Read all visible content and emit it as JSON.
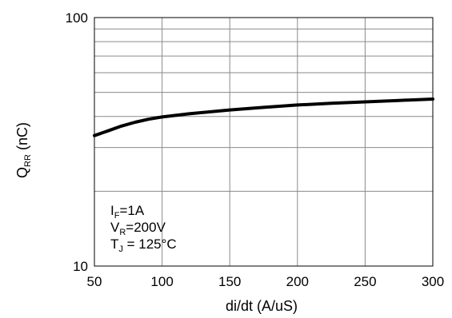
{
  "chart_data": {
    "type": "line",
    "x_scale": "linear",
    "y_scale": "log",
    "xlim": [
      50,
      300
    ],
    "ylim": [
      10,
      100
    ],
    "x_ticks": [
      50,
      100,
      150,
      200,
      250,
      300
    ],
    "y_tick_labels": [
      "100",
      "10"
    ],
    "xlabel": "di/dt (A/uS)",
    "ylabel": {
      "main": "Q",
      "sub": "RR",
      "suffix": " (nC)"
    },
    "grid": true,
    "series": [
      {
        "x": [
          50,
          60,
          70,
          80,
          90,
          100,
          120,
          150,
          175,
          200,
          225,
          250,
          275,
          300
        ],
        "y": [
          33.5,
          35.0,
          36.6,
          37.9,
          39.0,
          39.8,
          41.0,
          42.5,
          43.5,
          44.5,
          45.2,
          45.8,
          46.4,
          47.0
        ],
        "color": "#000000"
      }
    ],
    "annotations": [
      {
        "main": "I",
        "sub": "F",
        "rest": "=1A"
      },
      {
        "main": "V",
        "sub": "R",
        "rest": "=200V"
      },
      {
        "main": "T",
        "sub": "J",
        "rest": " = 125°C"
      }
    ]
  }
}
